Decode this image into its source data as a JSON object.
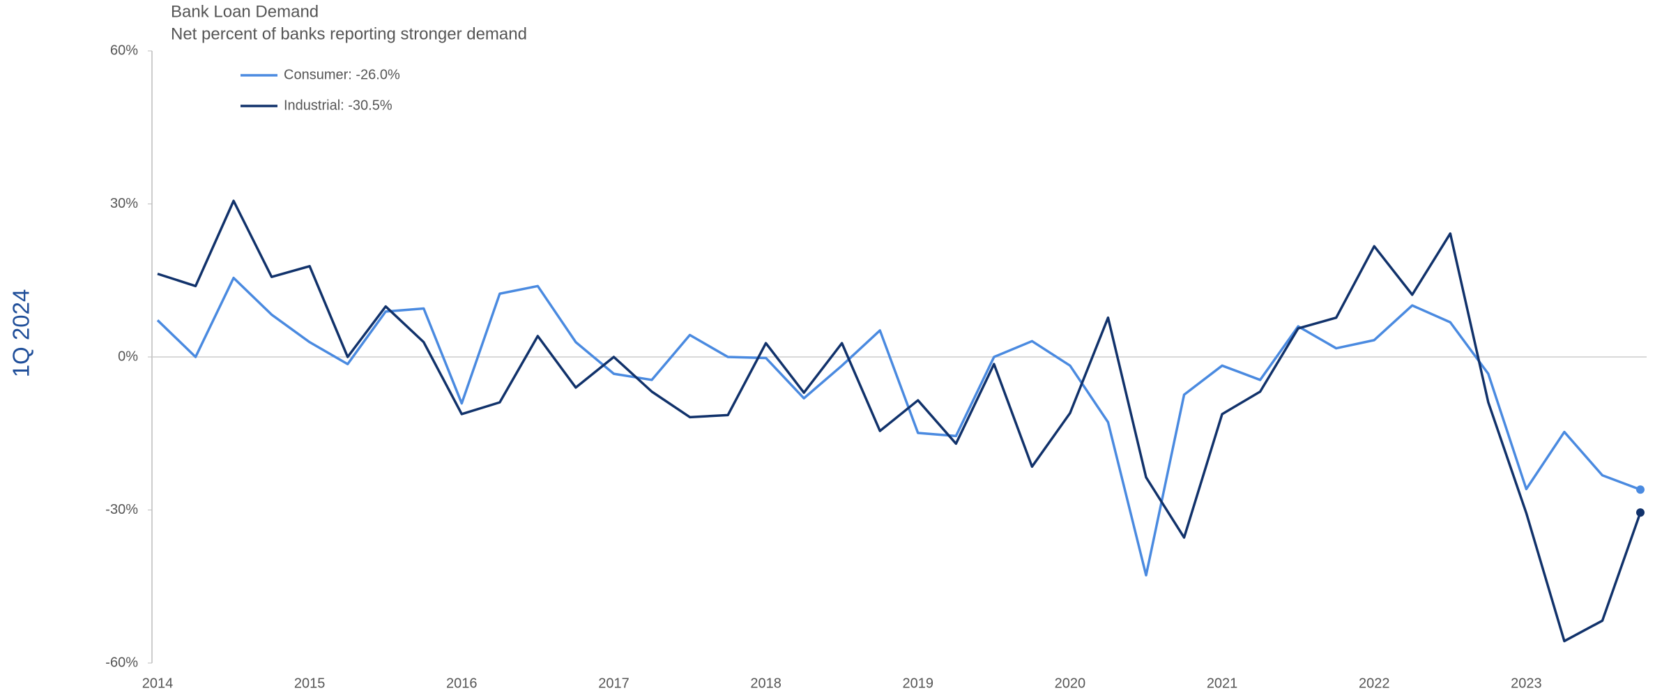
{
  "chart_data": {
    "type": "line",
    "title": "Bank Loan Demand",
    "subtitle": "Net percent of banks reporting stronger demand",
    "side_label": "1Q 2024",
    "categories": [
      "2014",
      null,
      null,
      null,
      "2015",
      null,
      null,
      null,
      "2016",
      null,
      null,
      null,
      "2017",
      null,
      null,
      null,
      "2018",
      null,
      null,
      null,
      "2019",
      null,
      null,
      null,
      "2020",
      null,
      null,
      null,
      "2021",
      null,
      null,
      null,
      "2022",
      null,
      null,
      null,
      "2023",
      null,
      null,
      null
    ],
    "series": [
      {
        "name": "Consumer: -26.0%",
        "color": "#4a8ae0",
        "values": [
          7.2,
          0,
          15.5,
          8.3,
          2.9,
          -1.4,
          8.9,
          9.5,
          -9.1,
          12.4,
          13.9,
          2.9,
          -3.3,
          -4.5,
          4.3,
          0,
          -0.2,
          -8.1,
          -1.7,
          5.2,
          -14.9,
          -15.5,
          0,
          3.1,
          -1.7,
          -12.8,
          -42.8,
          -7.4,
          -1.7,
          -4.5,
          6.0,
          1.7,
          3.3,
          10.1,
          6.8,
          -3.3,
          -25.9,
          -14.7,
          -23.2,
          -26.0
        ]
      },
      {
        "name": "Industrial: -30.5%",
        "color": "#11326b",
        "values": [
          16.3,
          13.9,
          30.6,
          15.7,
          17.8,
          0,
          9.9,
          2.9,
          -11.2,
          -8.9,
          4.1,
          -6.0,
          0,
          -6.8,
          -11.8,
          -11.4,
          2.7,
          -7.0,
          2.7,
          -14.5,
          -8.5,
          -17.0,
          -1.4,
          -21.5,
          -11.0,
          7.7,
          -23.6,
          -35.4,
          -11.2,
          -6.8,
          5.6,
          7.7,
          21.7,
          12.2,
          24.2,
          -8.9,
          -30.6,
          -55.7,
          -51.7,
          -30.5
        ]
      }
    ],
    "ylim": [
      -60,
      60
    ],
    "yticks": [
      {
        "value": -60,
        "label": "-60%"
      },
      {
        "value": -30,
        "label": "-30%"
      },
      {
        "value": 0,
        "label": "0%"
      },
      {
        "value": 30,
        "label": "30%"
      },
      {
        "value": 60,
        "label": "60%"
      }
    ],
    "zero_line": true,
    "end_markers": true,
    "legend": "top-left"
  }
}
